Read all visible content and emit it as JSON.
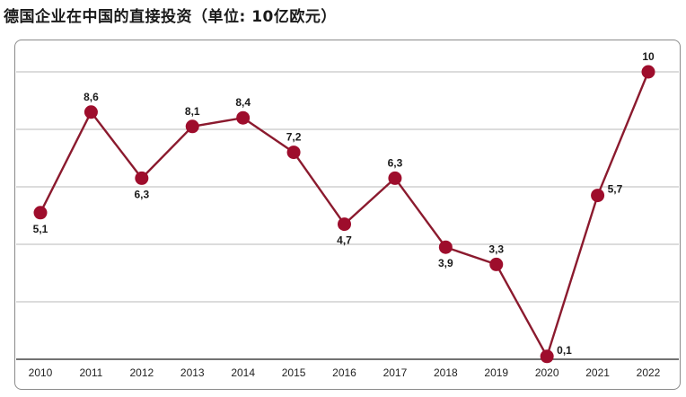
{
  "page": {
    "title": "德国企业在中国的直接投资（单位: 10亿欧元）"
  },
  "chart_data": {
    "type": "line",
    "title": "德国企业在中国的直接投资（单位: 10亿欧元）",
    "xlabel": "",
    "ylabel": "",
    "x": [
      "2010",
      "2011",
      "2012",
      "2013",
      "2014",
      "2015",
      "2016",
      "2017",
      "2018",
      "2019",
      "2020",
      "2021",
      "2022"
    ],
    "values": [
      5.1,
      8.6,
      6.3,
      8.1,
      8.4,
      7.2,
      4.7,
      6.3,
      3.9,
      3.3,
      0.1,
      5.7,
      10
    ],
    "value_labels": [
      "5,1",
      "8,6",
      "6,3",
      "8,1",
      "8,4",
      "7,2",
      "4,7",
      "6,3",
      "3,9",
      "3,3",
      "0,1",
      "5,7",
      "10"
    ],
    "label_position": [
      "below",
      "above",
      "below",
      "above",
      "above",
      "above",
      "below",
      "above",
      "below",
      "above",
      "right",
      "right",
      "above"
    ],
    "ylim": [
      0,
      10
    ],
    "grid": true,
    "y_gridlines": [
      0,
      2,
      4,
      6,
      8,
      10
    ],
    "legend": "none",
    "colors": {
      "line": "#8b1a2e",
      "marker": "#9e0d2c",
      "grid": "#b9b9b9",
      "baseline": "#444444"
    }
  }
}
